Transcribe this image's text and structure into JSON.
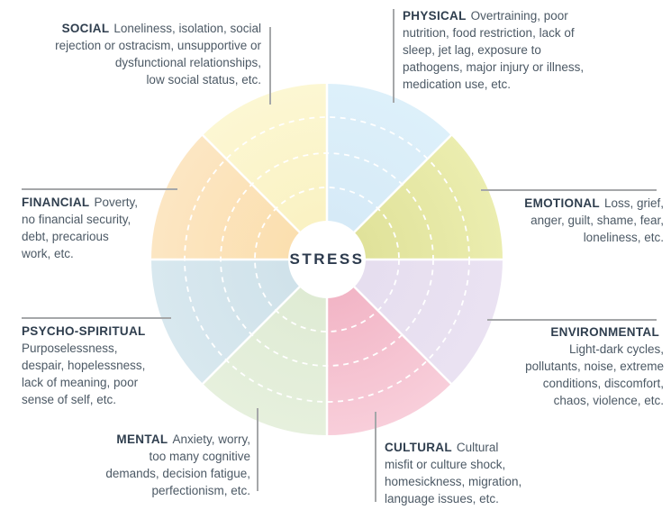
{
  "diagram": {
    "center_label": "STRESS",
    "outer_radius": 195,
    "hub_radius": 43,
    "ring_radii": [
      80,
      118,
      158
    ],
    "gap_color": "#ffffff",
    "label_color": "#2F3E4E",
    "desc_color": "#4C5965",
    "leader_line_color": "#A5A7A9",
    "categories": [
      {
        "key": "social",
        "label": "SOCIAL",
        "desc": "Loneliness, isolation, social\nrejection or ostracism, unsupportive or\ndysfunctional relationships,\nlow social status, etc.",
        "color_inner": "#FAF2C3",
        "color_outer": "#FCF7D3",
        "start_angle": 315,
        "end_angle": 360
      },
      {
        "key": "physical",
        "label": "PHYSICAL",
        "desc": "Overtraining, poor\nnutrition, food restriction, lack of\nsleep, jet lag, exposure to\npathogens, major injury or illness,\nmedication use, etc.",
        "color_inner": "#D6EAF7",
        "color_outer": "#DDF0FA",
        "start_angle": 0,
        "end_angle": 45
      },
      {
        "key": "emotional",
        "label": "EMOTIONAL",
        "desc": "Loss, grief,\nanger, guilt, shame, fear,\nloneliness, etc.",
        "color_inner": "#E0E29A",
        "color_outer": "#EBEDAF",
        "start_angle": 45,
        "end_angle": 90
      },
      {
        "key": "environmental",
        "label": "ENVIRONMENTAL",
        "desc": "\nLight-dark cycles,\npollutants, noise, extreme\nconditions, discomfort,\nchaos, violence, etc.",
        "color_inner": "#E6DEEF",
        "color_outer": "#EAE2F2",
        "start_angle": 90,
        "end_angle": 135
      },
      {
        "key": "cultural",
        "label": "CULTURAL",
        "desc": "Cultural\nmisfit or culture shock,\nhomesickness, migration,\nlanguage issues, etc.",
        "color_inner": "#F2B5C6",
        "color_outer": "#F8CEDA",
        "start_angle": 135,
        "end_angle": 180
      },
      {
        "key": "mental",
        "label": "MENTAL",
        "desc": "Anxiety, worry,\ntoo many cognitive\ndemands, decision fatigue,\nperfectionism, etc.",
        "color_inner": "#DFEBD4",
        "color_outer": "#E6F0DD",
        "start_angle": 180,
        "end_angle": 225
      },
      {
        "key": "psycho_spiritual",
        "label": "PSYCHO-SPIRITUAL",
        "desc": "\nPurposelessness,\ndespair, hopelessness,\nlack of meaning, poor\nsense of self, etc.",
        "color_inner": "#D0E2EA",
        "color_outer": "#D8E8EF",
        "start_angle": 225,
        "end_angle": 270
      },
      {
        "key": "financial",
        "label": "FINANCIAL",
        "desc": "Poverty,\nno financial security,\ndebt, precarious\nwork, etc.",
        "color_inner": "#FBDFAF",
        "color_outer": "#FCE6C3",
        "start_angle": 270,
        "end_angle": 315
      }
    ]
  }
}
